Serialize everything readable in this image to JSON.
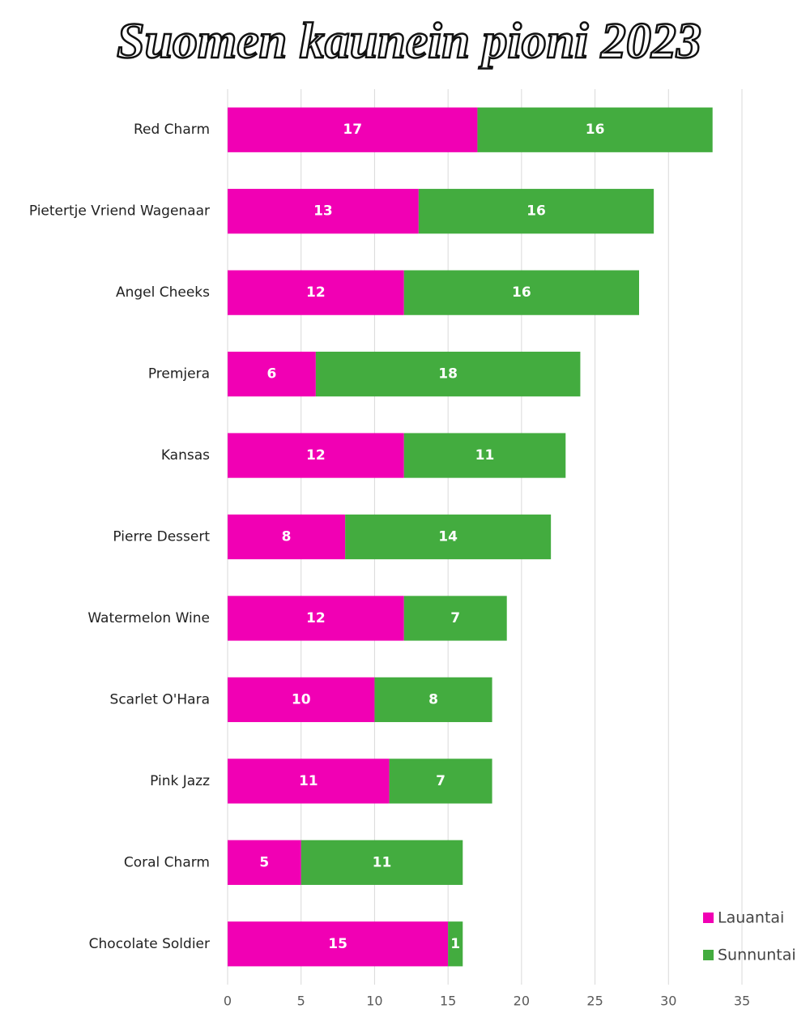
{
  "chart_data": {
    "type": "bar",
    "horizontal": true,
    "stacked": true,
    "title": "Suomen kaunein pioni 2023",
    "categories": [
      "Red Charm",
      "Pietertje Vriend Wagenaar",
      "Angel Cheeks",
      "Premjera",
      "Kansas",
      "Pierre Dessert",
      "Watermelon Wine",
      "Scarlet O'Hara",
      "Pink Jazz",
      "Coral Charm",
      "Chocolate Soldier"
    ],
    "series": [
      {
        "name": "Lauantai",
        "color": "#f100b4",
        "values": [
          17,
          13,
          12,
          6,
          12,
          8,
          12,
          10,
          11,
          5,
          15
        ]
      },
      {
        "name": "Sunnuntai",
        "color": "#43ac3f",
        "values": [
          16,
          16,
          16,
          18,
          11,
          14,
          7,
          8,
          7,
          11,
          1
        ]
      }
    ],
    "xlim": [
      0,
      35
    ],
    "xticks": [
      0,
      5,
      10,
      15,
      20,
      25,
      30,
      35
    ],
    "grid": true,
    "legend": "lower right"
  }
}
